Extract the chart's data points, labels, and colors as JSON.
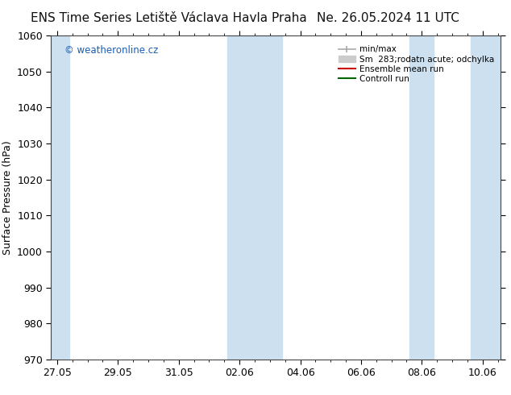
{
  "title_left": "ENS Time Series Letiště Václava Havla Praha",
  "title_right": "Ne. 26.05.2024 11 UTC",
  "ylabel": "Surface Pressure (hPa)",
  "ylim": [
    970,
    1060
  ],
  "yticks": [
    970,
    980,
    990,
    1000,
    1010,
    1020,
    1030,
    1040,
    1050,
    1060
  ],
  "xtick_labels": [
    "27.05",
    "29.05",
    "31.05",
    "02.06",
    "04.06",
    "06.06",
    "08.06",
    "10.06"
  ],
  "xtick_positions": [
    0,
    2,
    4,
    6,
    8,
    10,
    12,
    14
  ],
  "shaded_bands": [
    {
      "x_start": -0.2,
      "x_end": 0.4
    },
    {
      "x_start": 5.6,
      "x_end": 7.4
    },
    {
      "x_start": 11.6,
      "x_end": 12.4
    },
    {
      "x_start": 13.6,
      "x_end": 14.6
    }
  ],
  "shade_color": "#cce0f0",
  "watermark_text": "© weatheronline.cz",
  "watermark_color": "#1a5fb4",
  "background_color": "#ffffff",
  "grid_color": "#cccccc",
  "title_fontsize": 11,
  "axis_fontsize": 9,
  "tick_fontsize": 9,
  "xmin": -0.2,
  "xmax": 14.6,
  "legend_fontsize": 7.5
}
